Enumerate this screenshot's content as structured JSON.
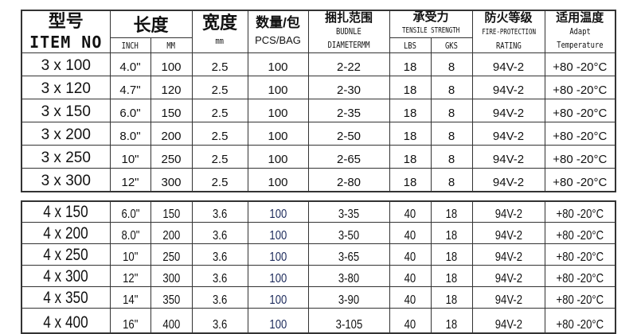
{
  "header": {
    "item_cn": "型号",
    "item_en": "ITEM NO",
    "length_cn": "长度",
    "length_inch": "INCH",
    "length_mm": "MM",
    "width_cn": "宽度",
    "width_unit": "mm",
    "qty_cn": "数量/包",
    "qty_en": "PCS/BAG",
    "bundle_cn": "捆扎范围",
    "bundle_en1": "BUDNLE",
    "bundle_en2": "DIAMETERMM",
    "tensile_cn": "承受力",
    "tensile_en": "TENSILE STRENGTH",
    "tensile_lbs": "LBS",
    "tensile_gks": "GKS",
    "fire_cn": "防火等级",
    "fire_en1": "FIRE-PROTECTION",
    "fire_en2": "RATING",
    "temp_cn": "适用温度",
    "temp_en1": "Adapt",
    "temp_en2": "Temperature"
  },
  "table1": [
    {
      "item": "3 x 100",
      "inch": "4.0\"",
      "mm": "100",
      "width": "2.5",
      "qty": "100",
      "bundle": "2-22",
      "lbs": "18",
      "gks": "8",
      "fire": "94V-2",
      "temp": "+80 -20°C"
    },
    {
      "item": "3 x 120",
      "inch": "4.7\"",
      "mm": "120",
      "width": "2.5",
      "qty": "100",
      "bundle": "2-30",
      "lbs": "18",
      "gks": "8",
      "fire": "94V-2",
      "temp": "+80 -20°C"
    },
    {
      "item": "3 x 150",
      "inch": "6.0\"",
      "mm": "150",
      "width": "2.5",
      "qty": "100",
      "bundle": "2-35",
      "lbs": "18",
      "gks": "8",
      "fire": "94V-2",
      "temp": "+80 -20°C"
    },
    {
      "item": "3 x 200",
      "inch": "8.0\"",
      "mm": "200",
      "width": "2.5",
      "qty": "100",
      "bundle": "2-50",
      "lbs": "18",
      "gks": "8",
      "fire": "94V-2",
      "temp": "+80 -20°C"
    },
    {
      "item": "3 x 250",
      "inch": "10\"",
      "mm": "250",
      "width": "2.5",
      "qty": "100",
      "bundle": "2-65",
      "lbs": "18",
      "gks": "8",
      "fire": "94V-2",
      "temp": "+80 -20°C"
    },
    {
      "item": "3 x 300",
      "inch": "12\"",
      "mm": "300",
      "width": "2.5",
      "qty": "100",
      "bundle": "2-80",
      "lbs": "18",
      "gks": "8",
      "fire": "94V-2",
      "temp": "+80 -20°C"
    }
  ],
  "table2": [
    {
      "item": "4 x 150",
      "inch": "6.0\"",
      "mm": "150",
      "width": "3.6",
      "qty": "100",
      "bundle": "3-35",
      "lbs": "40",
      "gks": "18",
      "fire": "94V-2",
      "temp": "+80 -20°C"
    },
    {
      "item": "4 x 200",
      "inch": "8.0\"",
      "mm": "200",
      "width": "3.6",
      "qty": "100",
      "bundle": "3-50",
      "lbs": "40",
      "gks": "18",
      "fire": "94V-2",
      "temp": "+80 -20°C"
    },
    {
      "item": "4 x 250",
      "inch": "10\"",
      "mm": "250",
      "width": "3.6",
      "qty": "100",
      "bundle": "3-65",
      "lbs": "40",
      "gks": "18",
      "fire": "94V-2",
      "temp": "+80 -20°C"
    },
    {
      "item": "4 x 300",
      "inch": "12\"",
      "mm": "300",
      "width": "3.6",
      "qty": "100",
      "bundle": "3-80",
      "lbs": "40",
      "gks": "18",
      "fire": "94V-2",
      "temp": "+80 -20°C"
    },
    {
      "item": "4 x 350",
      "inch": "14\"",
      "mm": "350",
      "width": "3.6",
      "qty": "100",
      "bundle": "3-90",
      "lbs": "40",
      "gks": "18",
      "fire": "94V-2",
      "temp": "+80 -20°C"
    },
    {
      "item": "4 x 400",
      "inch": "16\"",
      "mm": "400",
      "width": "3.6",
      "qty": "100",
      "bundle": "3-105",
      "lbs": "40",
      "gks": "18",
      "fire": "94V-2",
      "temp": "+80 -20°C"
    }
  ]
}
